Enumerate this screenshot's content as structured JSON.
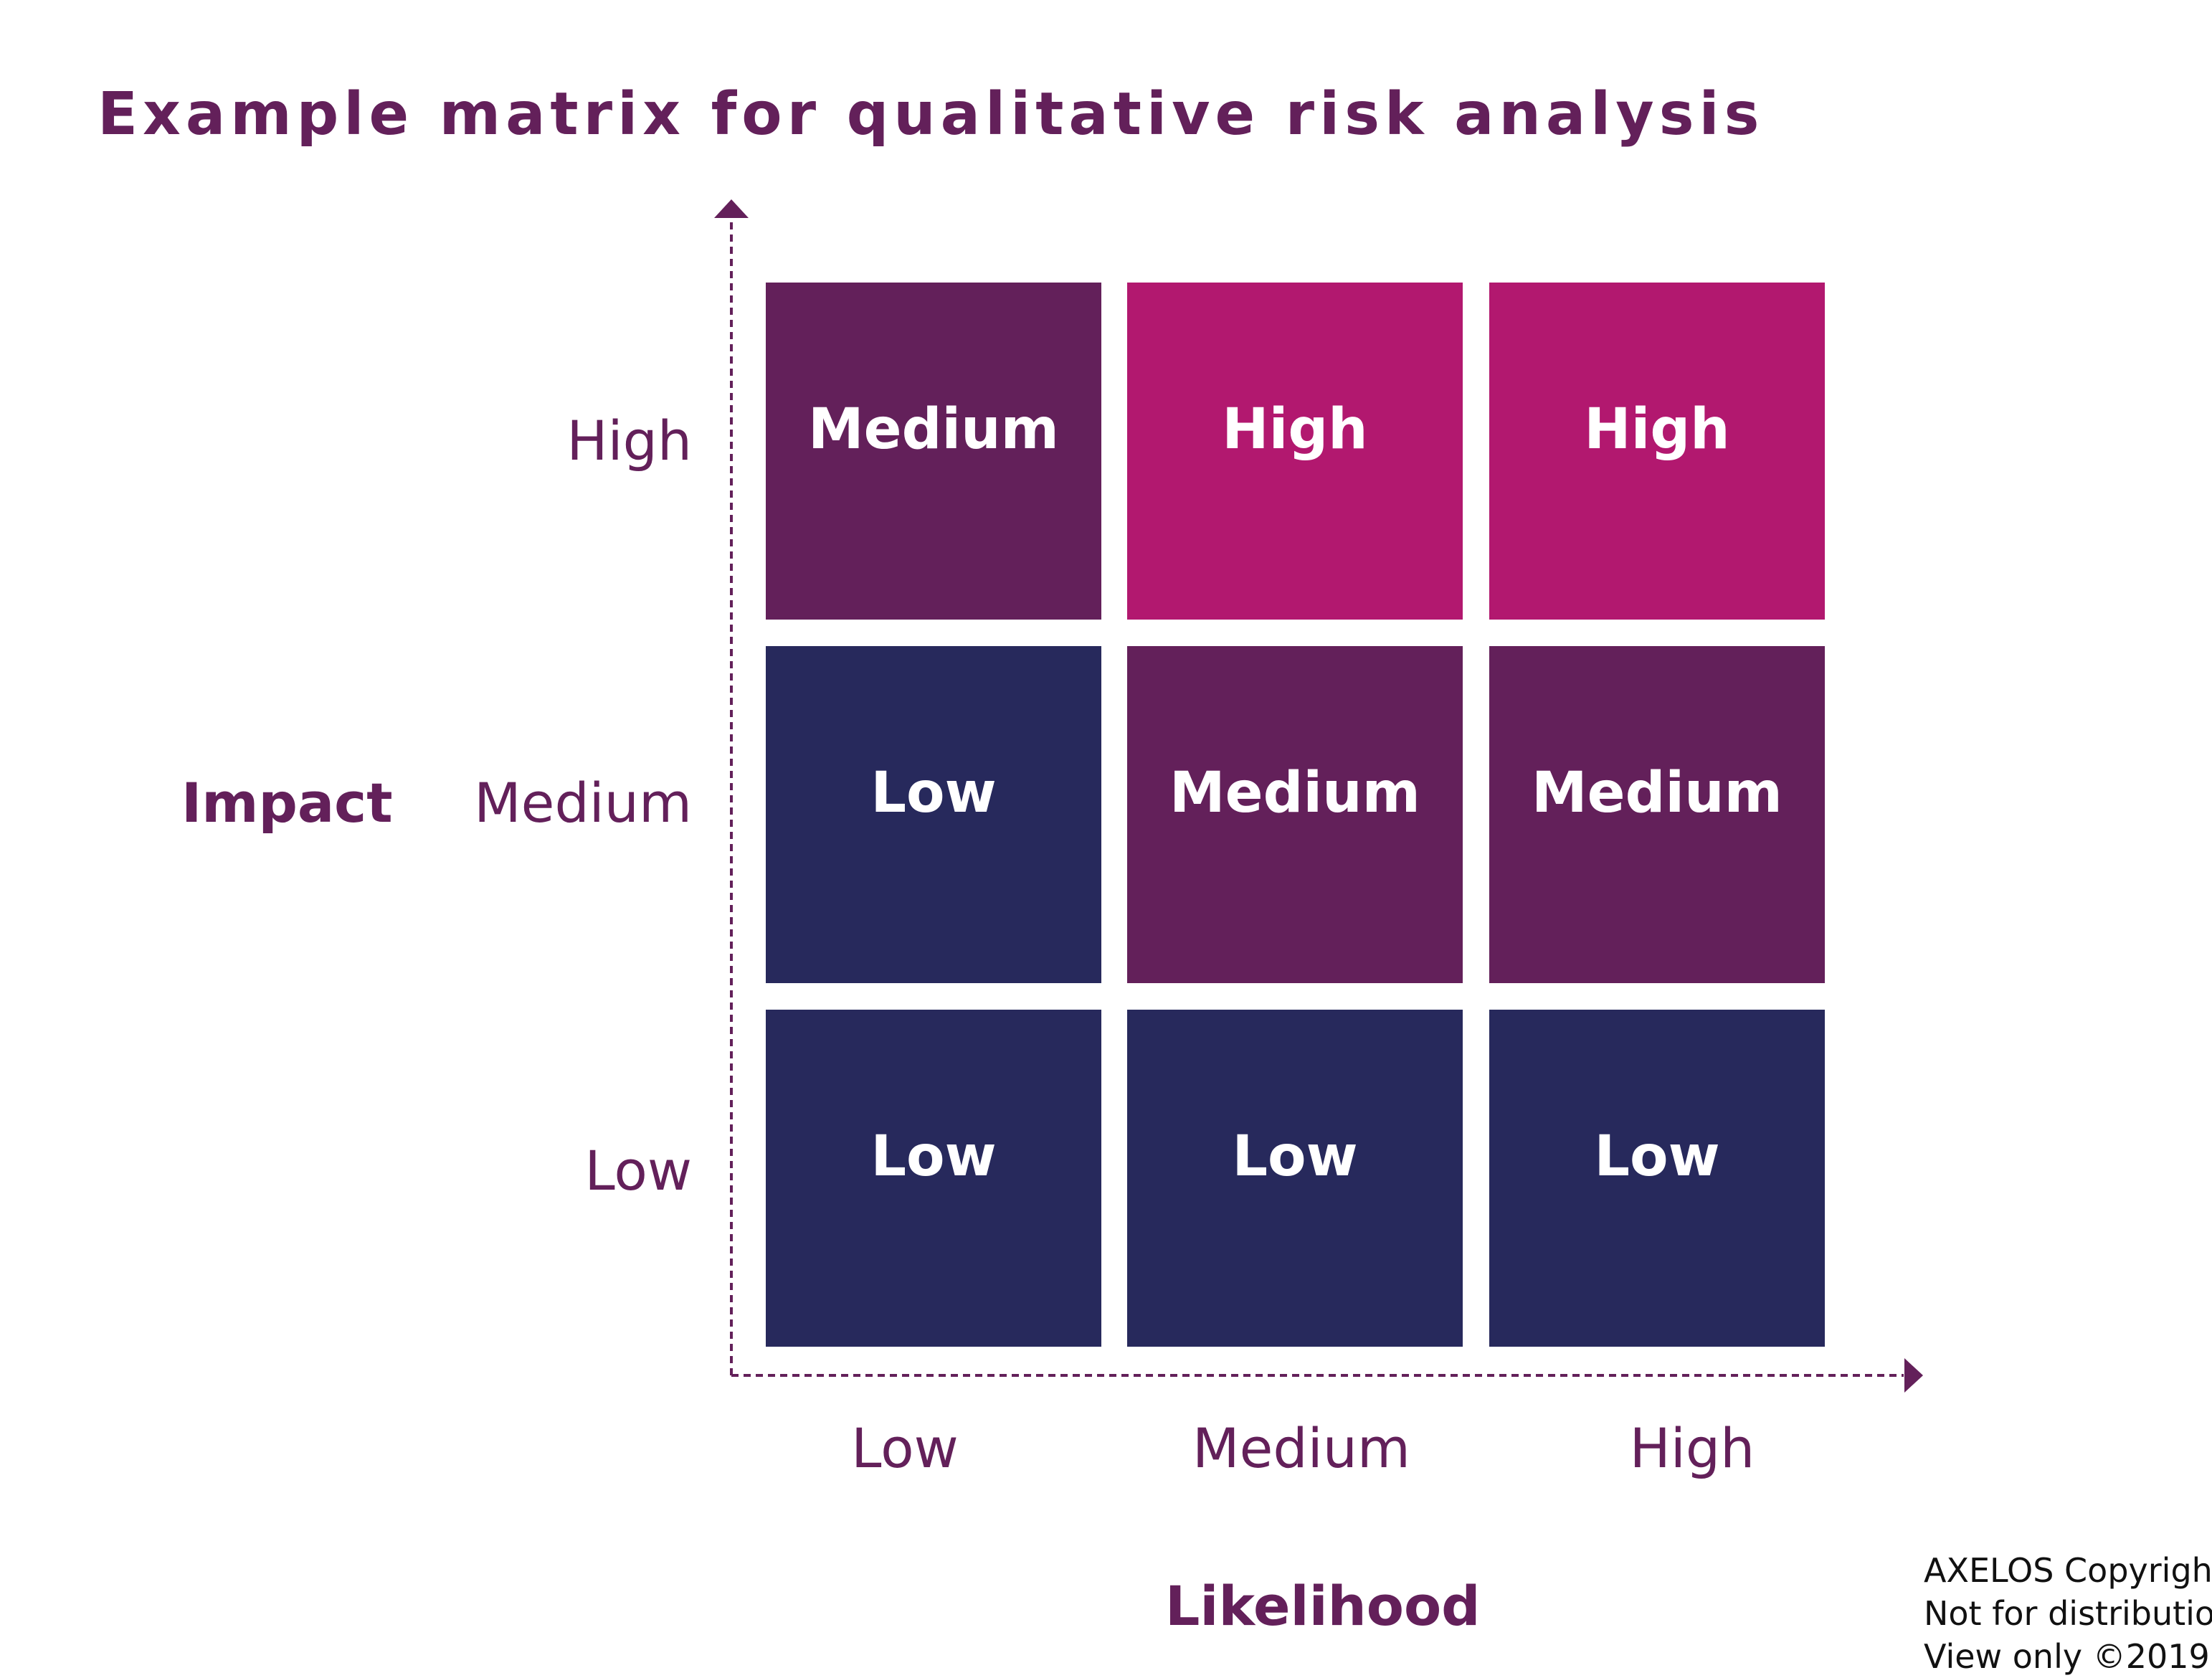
{
  "title": "Example matrix for qualitative risk analysis",
  "y_axis": {
    "label": "Impact",
    "ticks": [
      "High",
      "Medium",
      "Low"
    ]
  },
  "x_axis": {
    "label": "Likelihood",
    "ticks": [
      "Low",
      "Medium",
      "High"
    ]
  },
  "matrix": {
    "rows": [
      {
        "impact": "High",
        "cells": [
          {
            "label": "Medium",
            "level": "medium"
          },
          {
            "label": "High",
            "level": "high"
          },
          {
            "label": "High",
            "level": "high"
          }
        ]
      },
      {
        "impact": "Medium",
        "cells": [
          {
            "label": "Low",
            "level": "low"
          },
          {
            "label": "Medium",
            "level": "medium"
          },
          {
            "label": "Medium",
            "level": "medium"
          }
        ]
      },
      {
        "impact": "Low",
        "cells": [
          {
            "label": "Low",
            "level": "low"
          },
          {
            "label": "Low",
            "level": "low"
          },
          {
            "label": "Low",
            "level": "low"
          }
        ]
      }
    ]
  },
  "colors": {
    "low": "#27295c",
    "medium": "#63205a",
    "high": "#b2186f",
    "text": "#63205a"
  },
  "copyright": [
    "AXELOS Copyright",
    "Not for distribution",
    "View only ©2019"
  ]
}
